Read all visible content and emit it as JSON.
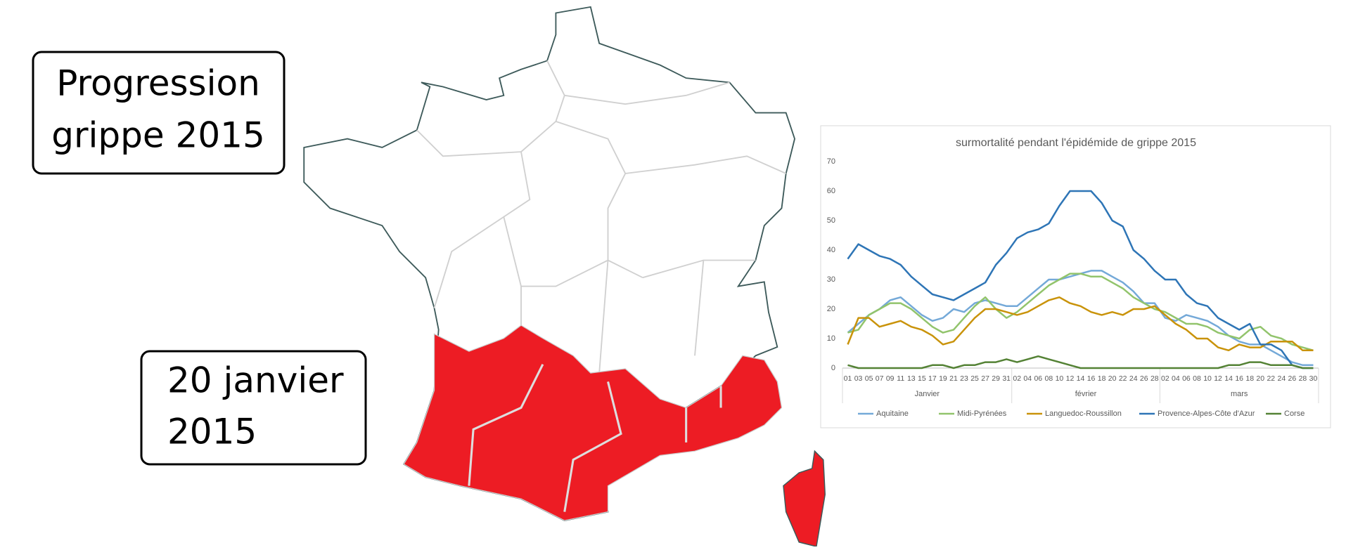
{
  "title_box": {
    "lines": [
      "Progression",
      "grippe 2015"
    ]
  },
  "date_box": {
    "lines": [
      "20 janvier",
      "2015"
    ]
  },
  "chart_data": {
    "type": "line",
    "title": "surmortalité pendant l'épidémide de grippe 2015",
    "groups": [
      {
        "name": "Janvier",
        "categories": [
          "01",
          "03",
          "05",
          "07",
          "09",
          "11",
          "13",
          "15",
          "17",
          "19",
          "21",
          "23",
          "25",
          "27",
          "29",
          "31"
        ]
      },
      {
        "name": "février",
        "categories": [
          "02",
          "04",
          "06",
          "08",
          "10",
          "12",
          "14",
          "16",
          "18",
          "20",
          "22",
          "24",
          "26",
          "28"
        ]
      },
      {
        "name": "mars",
        "categories": [
          "02",
          "04",
          "06",
          "08",
          "10",
          "12",
          "14",
          "16",
          "18",
          "20",
          "22",
          "24",
          "26",
          "28",
          "30"
        ]
      }
    ],
    "series": [
      {
        "name": "Aquitaine",
        "color": "#74a9d8",
        "values": [
          12,
          15,
          18,
          20,
          23,
          24,
          21,
          18,
          16,
          17,
          20,
          19,
          22,
          23,
          22,
          21,
          21,
          24,
          27,
          30,
          30,
          31,
          32,
          33,
          33,
          31,
          29,
          26,
          22,
          22,
          17,
          16,
          18,
          17,
          16,
          14,
          11,
          9,
          8,
          8,
          6,
          4,
          2,
          1,
          1
        ]
      },
      {
        "name": "Midi-Pyrénées",
        "color": "#92c46c",
        "values": [
          12,
          13,
          18,
          20,
          22,
          22,
          20,
          17,
          14,
          12,
          13,
          17,
          21,
          24,
          20,
          17,
          19,
          22,
          25,
          28,
          30,
          32,
          32,
          31,
          31,
          29,
          27,
          24,
          22,
          20,
          19,
          17,
          15,
          15,
          14,
          12,
          11,
          10,
          13,
          14,
          11,
          10,
          8,
          7,
          6
        ]
      },
      {
        "name": "Languedoc-Roussillon",
        "color": "#c9930a",
        "values": [
          8,
          17,
          17,
          14,
          15,
          16,
          14,
          13,
          11,
          8,
          9,
          13,
          17,
          20,
          20,
          19,
          18,
          19,
          21,
          23,
          24,
          22,
          21,
          19,
          18,
          19,
          18,
          20,
          20,
          21,
          18,
          15,
          13,
          10,
          10,
          7,
          6,
          8,
          7,
          7,
          9,
          9,
          9,
          6,
          6
        ]
      },
      {
        "name": "Provence-Alpes-Côte d'Azur",
        "color": "#2e75b6",
        "values": [
          37,
          42,
          40,
          38,
          37,
          35,
          31,
          28,
          25,
          24,
          23,
          25,
          27,
          29,
          35,
          39,
          44,
          46,
          47,
          49,
          55,
          60,
          60,
          60,
          56,
          50,
          48,
          40,
          37,
          33,
          30,
          30,
          25,
          22,
          21,
          17,
          15,
          13,
          15,
          8,
          8,
          6,
          1,
          0,
          0
        ]
      },
      {
        "name": "Corse",
        "color": "#548235",
        "values": [
          1,
          0,
          0,
          0,
          0,
          0,
          0,
          0,
          1,
          1,
          0,
          1,
          1,
          2,
          2,
          3,
          2,
          3,
          4,
          3,
          2,
          1,
          0,
          0,
          0,
          0,
          0,
          0,
          0,
          0,
          0,
          0,
          0,
          0,
          0,
          0,
          1,
          1,
          2,
          2,
          1,
          1,
          1,
          0,
          0
        ]
      }
    ],
    "ylim": [
      0,
      70
    ],
    "yticks": [
      0,
      10,
      20,
      30,
      40,
      50,
      60,
      70
    ],
    "grid": false,
    "legend": "bottom"
  }
}
